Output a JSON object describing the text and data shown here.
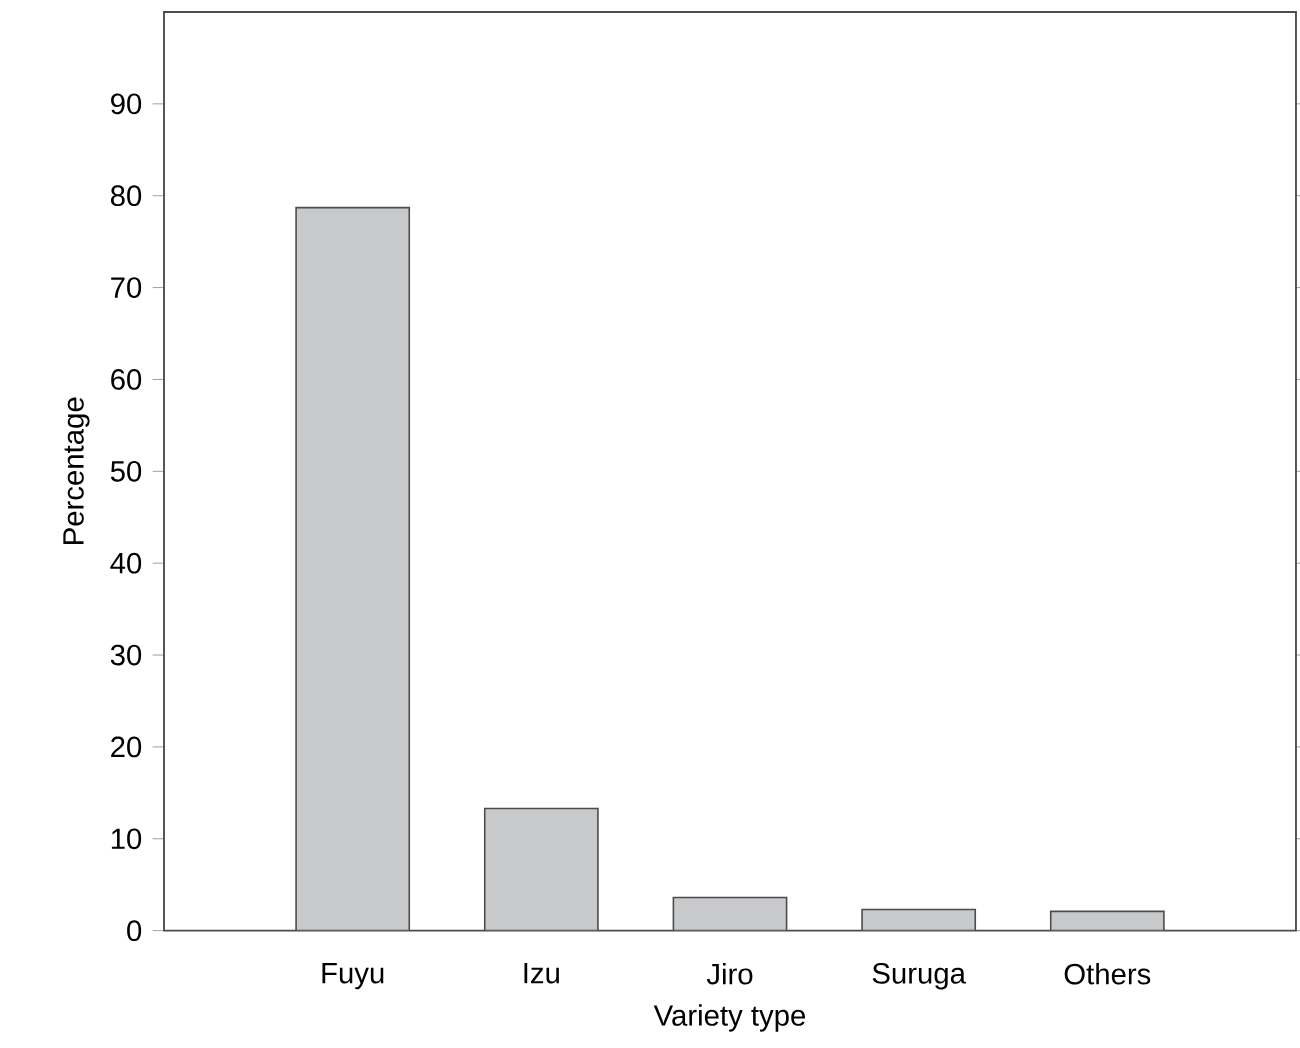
{
  "chart_data": {
    "type": "bar",
    "xlabel": "Variety type",
    "ylabel": "Percentage",
    "categories": [
      "Fuyu",
      "Izu",
      "Jiro",
      "Suruga",
      "Others"
    ],
    "values": [
      78.7,
      13.3,
      3.6,
      2.3,
      2.1
    ],
    "color": "#c8c9cb",
    "ylim": [
      0,
      100
    ],
    "yticks": [
      0,
      10,
      20,
      30,
      40,
      50,
      60,
      70,
      80,
      90
    ]
  }
}
